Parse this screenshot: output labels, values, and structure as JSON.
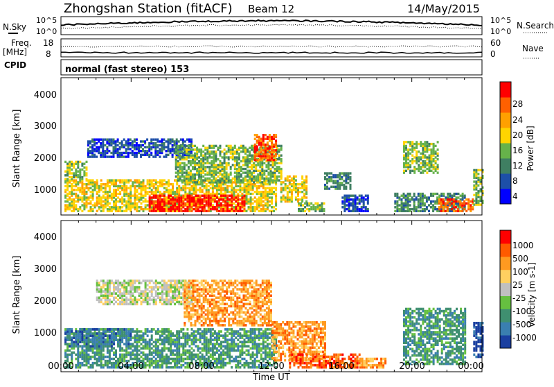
{
  "header": {
    "title": "Zhongshan Station (fitACF)",
    "beam": "Beam 12",
    "date": "14/May/2015",
    "cpid_label": "CPID",
    "cpid_text": "normal (fast stereo) 153"
  },
  "noise_panel": {
    "left_label": "N.Sky",
    "left_ticks": [
      "10^5",
      "10^0"
    ],
    "right_label": "N.Search",
    "right_ticks": [
      "10^5",
      "10^0"
    ]
  },
  "freq_panel": {
    "left_label_line1": "Freq.",
    "left_label_line2": "[MHz]",
    "left_ticks": [
      "18",
      "8"
    ],
    "right_label": "Nave",
    "right_ticks": [
      "60",
      "0"
    ]
  },
  "x_axis": {
    "label": "Time UT",
    "ticks": [
      "00:00",
      "04:00",
      "08:00",
      "12:00",
      "16:00",
      "20:00",
      "00:00"
    ]
  },
  "power_panel": {
    "ylabel": "Slant Range [km]",
    "yticks": [
      "4000",
      "3000",
      "2000",
      "1000"
    ],
    "colorbar_label": "Power [dB]",
    "colorbar_ticks": [
      "28",
      "24",
      "20",
      "16",
      "12",
      "8",
      "4"
    ]
  },
  "velocity_panel": {
    "ylabel": "Slant Range [km]",
    "yticks": [
      "4000",
      "3000",
      "2000",
      "1000"
    ],
    "colorbar_label": "Velocity [m s-1]",
    "colorbar_ticks": [
      "1000",
      "500",
      "100",
      "25",
      "-25",
      "-100",
      "-500",
      "-1000"
    ]
  },
  "chart_data": [
    {
      "type": "heatmap",
      "name": "power",
      "x_unit": "hours UT",
      "xlim": [
        0,
        24
      ],
      "ylim": [
        200,
        4500
      ],
      "colorbar": {
        "ticks": [
          28,
          24,
          20,
          16,
          12,
          8,
          4
        ],
        "colors": [
          "#0000ff",
          "#1d4fa8",
          "#3f7f62",
          "#66b24a",
          "#ffd400",
          "#ffa000",
          "#ff6000",
          "#ff0000"
        ]
      },
      "regions": [
        {
          "x0": 0.2,
          "x1": 12.2,
          "y0": 300,
          "y1": 1300,
          "level": 4
        },
        {
          "x0": 0.2,
          "x1": 1.5,
          "y0": 1300,
          "y1": 1900,
          "level": 3
        },
        {
          "x0": 1.5,
          "x1": 7.5,
          "y0": 2000,
          "y1": 2600,
          "level": 1
        },
        {
          "x0": 6.5,
          "x1": 12.5,
          "y0": 1200,
          "y1": 2400,
          "level": 3
        },
        {
          "x0": 5.0,
          "x1": 10.5,
          "y0": 300,
          "y1": 800,
          "level": 7
        },
        {
          "x0": 11.0,
          "x1": 12.2,
          "y0": 1900,
          "y1": 2700,
          "level": 6
        },
        {
          "x0": 12.5,
          "x1": 14.0,
          "y0": 600,
          "y1": 1400,
          "level": 4
        },
        {
          "x0": 13.5,
          "x1": 15.0,
          "y0": 300,
          "y1": 600,
          "level": 3
        },
        {
          "x0": 15.0,
          "x1": 16.5,
          "y0": 1000,
          "y1": 1500,
          "level": 2
        },
        {
          "x0": 16.0,
          "x1": 17.5,
          "y0": 300,
          "y1": 800,
          "level": 1
        },
        {
          "x0": 19.5,
          "x1": 21.5,
          "y0": 1500,
          "y1": 2500,
          "level": 3
        },
        {
          "x0": 19.0,
          "x1": 23.0,
          "y0": 300,
          "y1": 900,
          "level": 2
        },
        {
          "x0": 21.5,
          "x1": 23.5,
          "y0": 300,
          "y1": 700,
          "level": 6
        },
        {
          "x0": 23.5,
          "x1": 24.0,
          "y0": 500,
          "y1": 1600,
          "level": 3
        }
      ]
    },
    {
      "type": "heatmap",
      "name": "velocity",
      "x_unit": "hours UT",
      "xlim": [
        0,
        24
      ],
      "ylim": [
        200,
        4500
      ],
      "colorbar": {
        "ticks": [
          1000,
          500,
          100,
          25,
          -25,
          -100,
          -500,
          -1000
        ],
        "colors": [
          "#1a3fa0",
          "#3a7fb0",
          "#3f8f70",
          "#66c040",
          "#c0c0c0",
          "#ffd060",
          "#ff9a20",
          "#ff5a00",
          "#ff0000"
        ]
      },
      "regions": [
        {
          "x0": 0.2,
          "x1": 12.2,
          "y0": 300,
          "y1": 1400,
          "level": 2
        },
        {
          "x0": 0.2,
          "x1": 4.0,
          "y0": 900,
          "y1": 1400,
          "level": 1
        },
        {
          "x0": 2.0,
          "x1": 7.5,
          "y0": 2100,
          "y1": 2800,
          "level": 4
        },
        {
          "x0": 7.0,
          "x1": 12.0,
          "y0": 1500,
          "y1": 2800,
          "level": 6
        },
        {
          "x0": 12.0,
          "x1": 15.0,
          "y0": 500,
          "y1": 1600,
          "level": 6
        },
        {
          "x0": 13.0,
          "x1": 17.0,
          "y0": 300,
          "y1": 700,
          "level": 7
        },
        {
          "x0": 17.0,
          "x1": 18.5,
          "y0": 300,
          "y1": 600,
          "level": 6
        },
        {
          "x0": 19.5,
          "x1": 23.0,
          "y0": 400,
          "y1": 2000,
          "level": 2
        },
        {
          "x0": 23.5,
          "x1": 24.0,
          "y0": 600,
          "y1": 1600,
          "level": 0
        }
      ]
    }
  ]
}
